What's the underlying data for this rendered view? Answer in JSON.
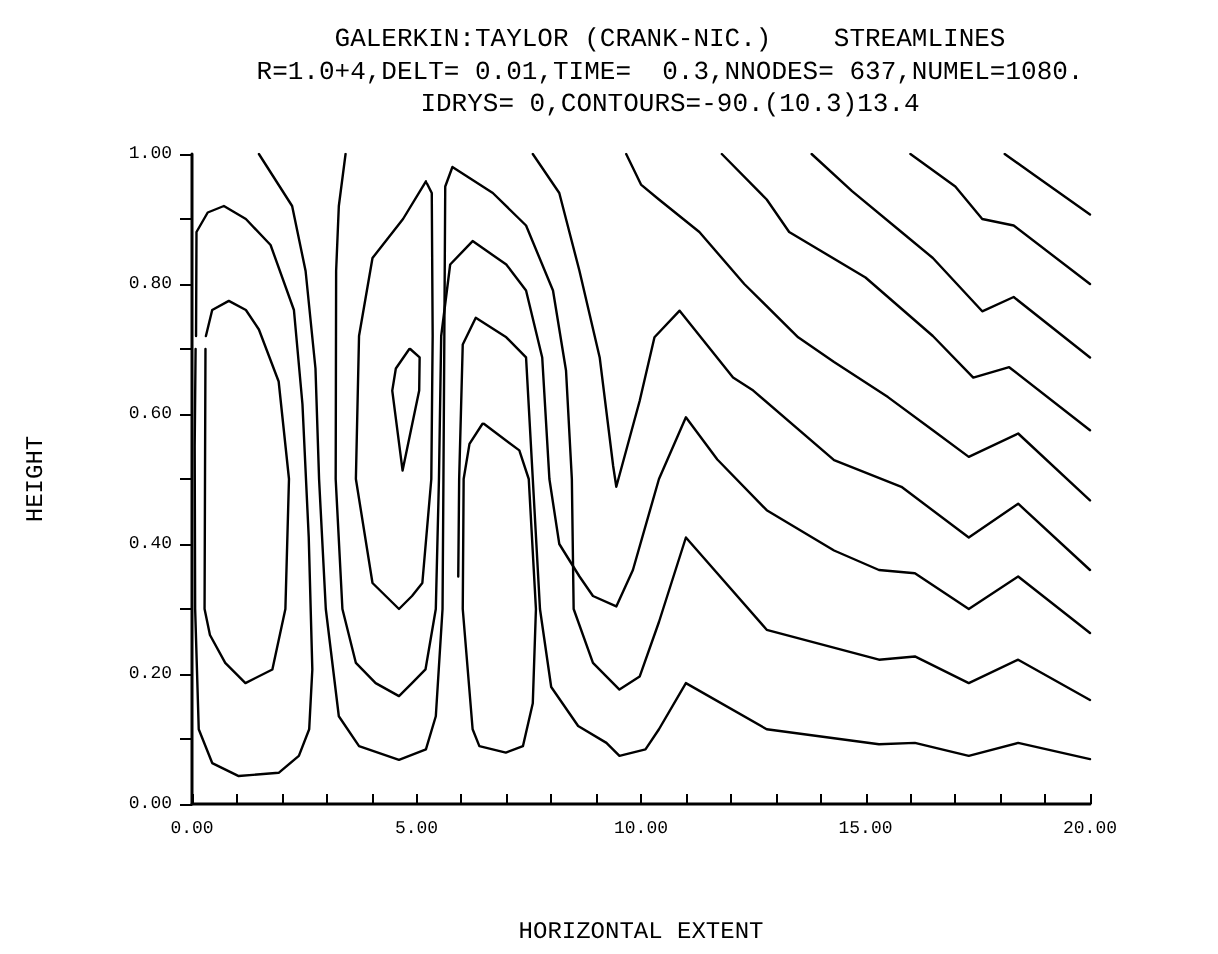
{
  "chart_data": {
    "type": "line",
    "title": "GALERKIN:TAYLOR (CRANK-NIC.)    STREAMLINES",
    "subtitle": "R=1.0+4,DELT= 0.01,TIME=  0.3,NNODES= 637,NUMEL=1080.\nIDRYS= 0,CONTOURS=-90.(10.3)13.4",
    "xlabel": "HORIZONTAL EXTENT",
    "ylabel": "HEIGHT",
    "xlim": [
      0,
      20
    ],
    "ylim": [
      0,
      1
    ],
    "xticks": [
      {
        "value": 0,
        "label": "0.00"
      },
      {
        "value": 1,
        "label": null
      },
      {
        "value": 2,
        "label": null
      },
      {
        "value": 3,
        "label": null
      },
      {
        "value": 4,
        "label": null
      },
      {
        "value": 5,
        "label": "5.00"
      },
      {
        "value": 6,
        "label": null
      },
      {
        "value": 7,
        "label": null
      },
      {
        "value": 8,
        "label": null
      },
      {
        "value": 9,
        "label": null
      },
      {
        "value": 10,
        "label": "10.00"
      },
      {
        "value": 11,
        "label": null
      },
      {
        "value": 12,
        "label": null
      },
      {
        "value": 13,
        "label": null
      },
      {
        "value": 14,
        "label": null
      },
      {
        "value": 15,
        "label": "15.00"
      },
      {
        "value": 16,
        "label": null
      },
      {
        "value": 17,
        "label": null
      },
      {
        "value": 18,
        "label": null
      },
      {
        "value": 19,
        "label": null
      },
      {
        "value": 20,
        "label": "20.00"
      }
    ],
    "yticks": [
      {
        "value": 0,
        "label": "0.00"
      },
      {
        "value": 0.1,
        "label": null
      },
      {
        "value": 0.2,
        "label": "0.20"
      },
      {
        "value": 0.3,
        "label": null
      },
      {
        "value": 0.4,
        "label": "0.40"
      },
      {
        "value": 0.5,
        "label": null
      },
      {
        "value": 0.6,
        "label": "0.60"
      },
      {
        "value": 0.7,
        "label": null
      },
      {
        "value": 0.8,
        "label": "0.80"
      },
      {
        "value": 0.9,
        "label": null
      },
      {
        "value": 1,
        "label": "1.00"
      }
    ],
    "marker": "none",
    "line_style": "solid",
    "series": [
      {
        "color": "#000000",
        "x": [
          0.09,
          0.1,
          0.35,
          0.71,
          1.2,
          1.75,
          2.27,
          2.46,
          2.6,
          2.68,
          2.61,
          2.38,
          1.93,
          1.04,
          0.45,
          0.15,
          0.07,
          0.06,
          0.08
        ],
        "values": [
          0.72,
          0.88,
          0.91,
          0.92,
          0.9,
          0.86,
          0.76,
          0.615,
          0.41,
          0.207,
          0.115,
          0.074,
          0.048,
          0.043,
          0.063,
          0.115,
          0.3,
          0.55,
          0.7
        ]
      },
      {
        "color": "#000000",
        "x": [
          0.31,
          0.45,
          0.82,
          1.2,
          1.49,
          1.93,
          2.16,
          2.08,
          1.79,
          1.19,
          0.74,
          0.4,
          0.28,
          0.29,
          0.3
        ],
        "values": [
          0.72,
          0.76,
          0.774,
          0.76,
          0.73,
          0.65,
          0.5,
          0.3,
          0.207,
          0.186,
          0.217,
          0.26,
          0.3,
          0.51,
          0.7
        ]
      },
      {
        "color": "#000000",
        "x": [
          1.49,
          2.23,
          2.53,
          2.75,
          2.83,
          2.98,
          3.27,
          3.72,
          4.61,
          5.21,
          5.43,
          5.58,
          5.6,
          5.62,
          5.64,
          5.8,
          6.7,
          7.44,
          8.04,
          8.33,
          8.46,
          8.5,
          8.93,
          9.52,
          9.97,
          10.4,
          11.0,
          12.8,
          15.3,
          16.1,
          17.3,
          18.4,
          20
        ],
        "values": [
          1.0,
          0.92,
          0.82,
          0.67,
          0.5,
          0.3,
          0.135,
          0.089,
          0.068,
          0.084,
          0.135,
          0.3,
          0.5,
          0.72,
          0.95,
          0.98,
          0.94,
          0.89,
          0.79,
          0.667,
          0.5,
          0.3,
          0.217,
          0.176,
          0.196,
          0.28,
          0.41,
          0.268,
          0.222,
          0.227,
          0.186,
          0.222,
          0.16
        ]
      },
      {
        "color": "#000000",
        "x": [
          3.42,
          3.27,
          3.21,
          3.2,
          3.35,
          3.65,
          4.09,
          4.61,
          4.9,
          5.2,
          5.43,
          5.5,
          5.55,
          5.75,
          6.25,
          7.0,
          7.44,
          7.8,
          7.96,
          8.18,
          8.63,
          8.93,
          9.45,
          9.82,
          10.4,
          11.0,
          11.7,
          12.8,
          14.3,
          15.3,
          16.1,
          17.3,
          18.4,
          20
        ],
        "values": [
          1.0,
          0.92,
          0.82,
          0.5,
          0.3,
          0.217,
          0.186,
          0.166,
          0.186,
          0.207,
          0.3,
          0.5,
          0.72,
          0.83,
          0.866,
          0.83,
          0.79,
          0.687,
          0.5,
          0.4,
          0.35,
          0.32,
          0.304,
          0.36,
          0.5,
          0.595,
          0.53,
          0.452,
          0.39,
          0.36,
          0.355,
          0.3,
          0.35,
          0.263
        ]
      },
      {
        "color": "#000000",
        "x": [
          5.21,
          4.7,
          4.02,
          3.72,
          3.65,
          4.02,
          4.61,
          4.9,
          5.13,
          5.33,
          5.36,
          5.34,
          5.23
        ],
        "values": [
          0.958,
          0.9,
          0.84,
          0.72,
          0.5,
          0.34,
          0.3,
          0.32,
          0.34,
          0.5,
          0.72,
          0.94,
          0.955
        ]
      },
      {
        "color": "#000000",
        "x": [
          4.84,
          4.54,
          4.46,
          4.69,
          5.06,
          5.07,
          4.86
        ],
        "values": [
          0.7,
          0.67,
          0.636,
          0.513,
          0.636,
          0.687,
          0.7
        ]
      },
      {
        "color": "#000000",
        "x": [
          6.47,
          6.18,
          6.05,
          6.03,
          6.25,
          6.4,
          6.99,
          7.37,
          7.59,
          7.66,
          7.5,
          7.29,
          6.5
        ],
        "values": [
          0.585,
          0.554,
          0.5,
          0.3,
          0.115,
          0.089,
          0.079,
          0.089,
          0.155,
          0.3,
          0.5,
          0.544,
          0.585
        ]
      },
      {
        "color": "#000000",
        "x": [
          5.93,
          5.95,
          6.03,
          6.32,
          7.0,
          7.44,
          7.59,
          7.75,
          8.0,
          8.6,
          9.23,
          9.52,
          10.1,
          10.4,
          11.0,
          12.8,
          15.3,
          16.1,
          17.3,
          18.4,
          20
        ],
        "values": [
          0.35,
          0.5,
          0.707,
          0.748,
          0.718,
          0.687,
          0.5,
          0.3,
          0.18,
          0.12,
          0.094,
          0.074,
          0.084,
          0.115,
          0.186,
          0.115,
          0.092,
          0.094,
          0.074,
          0.094,
          0.069
        ]
      },
      {
        "color": "#000000",
        "x": [
          7.59,
          8.18,
          8.63,
          9.08,
          9.38,
          9.45,
          9.97,
          10.3,
          10.86,
          12.05,
          12.5,
          14.3,
          15.8,
          17.3,
          18.4,
          20
        ],
        "values": [
          1.0,
          0.94,
          0.82,
          0.687,
          0.52,
          0.488,
          0.62,
          0.718,
          0.759,
          0.656,
          0.636,
          0.529,
          0.488,
          0.41,
          0.462,
          0.36
        ]
      },
      {
        "color": "#000000",
        "x": [
          9.67,
          10.0,
          10.4,
          11.3,
          12.3,
          13.5,
          14.3,
          15.5,
          16.5,
          17.3,
          18.4,
          20
        ],
        "values": [
          1.0,
          0.953,
          0.93,
          0.88,
          0.8,
          0.718,
          0.68,
          0.626,
          0.575,
          0.534,
          0.57,
          0.467
        ]
      },
      {
        "color": "#000000",
        "x": [
          11.8,
          12.8,
          13.3,
          15.0,
          16.5,
          17.4,
          18.2,
          20
        ],
        "values": [
          1.0,
          0.93,
          0.88,
          0.81,
          0.72,
          0.656,
          0.672,
          0.575
        ]
      },
      {
        "color": "#000000",
        "x": [
          13.8,
          14.7,
          15.8,
          16.5,
          17.6,
          18.3,
          20
        ],
        "values": [
          1.0,
          0.943,
          0.88,
          0.84,
          0.758,
          0.78,
          0.687
        ]
      },
      {
        "color": "#000000",
        "x": [
          16.0,
          17.0,
          17.6,
          18.3,
          20
        ],
        "values": [
          1.0,
          0.95,
          0.9,
          0.89,
          0.8
        ]
      },
      {
        "color": "#000000",
        "x": [
          18.1,
          18.75,
          20
        ],
        "values": [
          1.0,
          0.968,
          0.907
        ]
      }
    ]
  }
}
